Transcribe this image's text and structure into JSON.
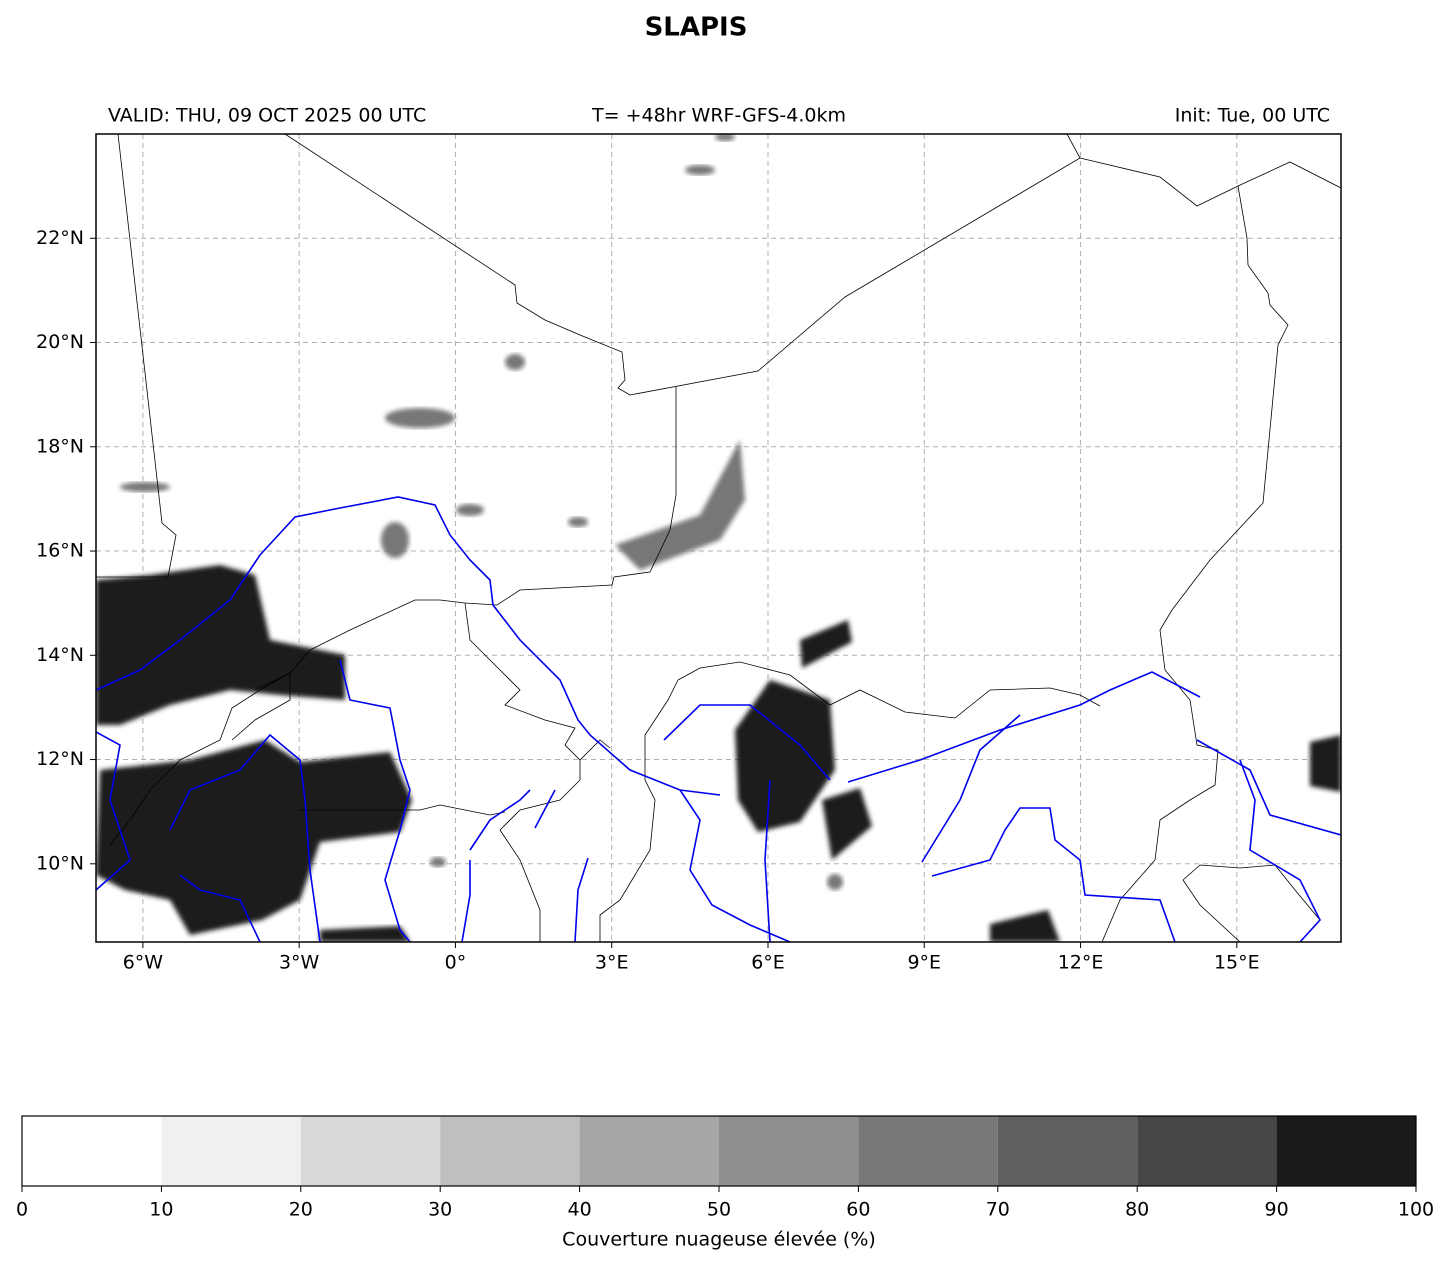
{
  "title": "SLAPIS",
  "valid_text": "VALID: THU, 09 OCT 2025 00 UTC",
  "model_text": "T= +48hr WRF-GFS-4.0km",
  "init_text": "Init: Tue, 00 UTC",
  "map": {
    "xlim": [
      -6.9,
      17
    ],
    "ylim": [
      8.5,
      24
    ],
    "grid": true,
    "xticks": [
      {
        "value": -6,
        "label": "6°W"
      },
      {
        "value": -3,
        "label": "3°W"
      },
      {
        "value": 0,
        "label": "0°"
      },
      {
        "value": 3,
        "label": "3°E"
      },
      {
        "value": 6,
        "label": "6°E"
      },
      {
        "value": 9,
        "label": "9°E"
      },
      {
        "value": 12,
        "label": "12°E"
      },
      {
        "value": 15,
        "label": "15°E"
      }
    ],
    "yticks": [
      {
        "value": 10,
        "label": "10°N"
      },
      {
        "value": 12,
        "label": "12°N"
      },
      {
        "value": 14,
        "label": "14°N"
      },
      {
        "value": 16,
        "label": "16°N"
      },
      {
        "value": 18,
        "label": "18°N"
      },
      {
        "value": 20,
        "label": "20°N"
      },
      {
        "value": 22,
        "label": "22°N"
      }
    ]
  },
  "colorbar": {
    "label": "Couverture nuageuse élevée (%)",
    "ticks": [
      0,
      10,
      20,
      30,
      40,
      50,
      60,
      70,
      80,
      90,
      100
    ],
    "colors": [
      "#ffffff",
      "#f0f0f0",
      "#d9d9d9",
      "#bfbfbf",
      "#a6a6a6",
      "#8f8f8f",
      "#787878",
      "#616161",
      "#474747",
      "#1a1a1a"
    ]
  }
}
